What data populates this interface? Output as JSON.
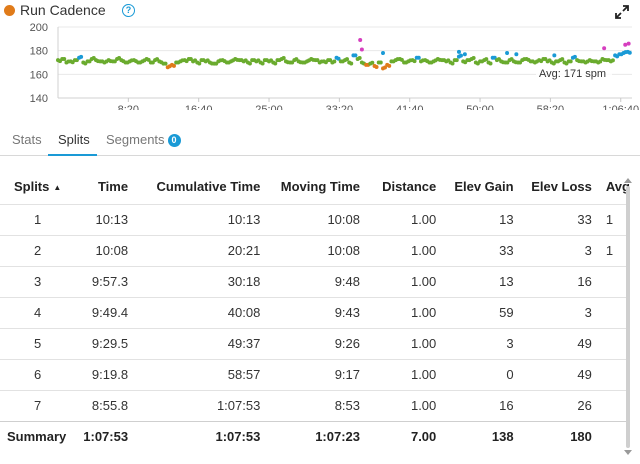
{
  "header": {
    "title": "Run Cadence",
    "metric_color": "#e07b1a",
    "help_icon": "help-circle-icon",
    "expand_icon": "expand-icon"
  },
  "chart_data": {
    "type": "scatter",
    "title": "Run Cadence",
    "y_ticks": [
      "200",
      "180",
      "160",
      "140"
    ],
    "ylim": [
      140,
      200
    ],
    "x_ticks": [
      "8:20",
      "16:40",
      "25:00",
      "33:20",
      "41:40",
      "50:00",
      "58:20",
      "1:06:40"
    ],
    "x_tick_minutes": [
      8.333,
      16.667,
      25,
      33.333,
      41.667,
      50,
      58.333,
      66.667
    ],
    "xlim_minutes": [
      0,
      68
    ],
    "avg_label": "Avg: 171 spm",
    "avg_value": 171,
    "series_colors": {
      "low": "#e07b1a",
      "mid": "#6aab2e",
      "high": "#1a9ad6",
      "top": "#d63fbf"
    },
    "series": [
      {
        "name": "",
        "x_minutes": [
          0,
          0.5,
          1,
          1.5,
          2,
          2.5,
          3,
          3.5,
          4,
          4.5,
          5,
          5.5,
          6,
          6.5,
          7,
          7.5,
          8,
          8.5,
          9,
          9.5,
          10,
          10.5,
          11,
          11.5,
          12,
          12.5,
          13,
          13.5,
          14,
          14.5,
          15,
          15.5,
          16,
          16.5,
          17,
          17.5,
          18,
          18.5,
          19,
          19.5,
          20,
          20.5,
          21,
          21.5,
          22,
          22.5,
          23,
          23.5,
          24,
          24.5,
          25,
          25.5,
          26,
          26.5,
          27,
          27.5,
          28,
          28.5,
          29,
          29.5,
          30,
          30.5,
          31,
          31.5,
          32,
          32.5,
          33,
          33.5,
          34,
          34.5,
          35,
          35.5,
          36,
          36.5,
          37,
          37.5,
          38,
          38.5,
          39,
          39.5,
          40,
          40.5,
          41,
          41.5,
          42,
          42.5,
          43,
          43.5,
          44,
          44.5,
          45,
          45.5,
          46,
          46.5,
          47,
          47.5,
          48,
          48.5,
          49,
          49.5,
          50,
          50.5,
          51,
          51.5,
          52,
          52.5,
          53,
          53.5,
          54,
          54.5,
          55,
          55.5,
          56,
          56.5,
          57,
          57.5,
          58,
          58.5,
          59,
          59.5,
          60,
          60.5,
          61,
          61.5,
          62,
          62.5,
          63,
          63.5,
          64,
          64.5,
          65,
          65.5,
          66,
          66.5,
          67,
          67.5
        ],
        "values": [
          172,
          173,
          170,
          171,
          172,
          174,
          170,
          171,
          173,
          172,
          171,
          170,
          172,
          171,
          173,
          172,
          170,
          171,
          172,
          170,
          171,
          173,
          170,
          172,
          171,
          169,
          166,
          168,
          170,
          171,
          172,
          173,
          171,
          170,
          172,
          171,
          170,
          169,
          171,
          172,
          170,
          171,
          173,
          172,
          171,
          170,
          172,
          171,
          170,
          172,
          171,
          170,
          172,
          173,
          171,
          170,
          172,
          171,
          170,
          171,
          173,
          172,
          170,
          171,
          172,
          170,
          174,
          171,
          172,
          170,
          176,
          173,
          170,
          168,
          169,
          167,
          170,
          165,
          168,
          171,
          172,
          173,
          170,
          171,
          172,
          174,
          171,
          172,
          170,
          171,
          173,
          172,
          171,
          170,
          172,
          175,
          171,
          172,
          173,
          170,
          171,
          172,
          170,
          174,
          172,
          171,
          170,
          172,
          171,
          170,
          172,
          173,
          171,
          170,
          172,
          173,
          171,
          170,
          171,
          172,
          170,
          171,
          174,
          172,
          171,
          170,
          172,
          171,
          170,
          173,
          172,
          171,
          176,
          177,
          178,
          179
        ]
      }
    ],
    "outliers": [
      {
        "x_minutes": 35.8,
        "value": 189
      },
      {
        "x_minutes": 36.0,
        "value": 181
      },
      {
        "x_minutes": 38.5,
        "value": 178
      },
      {
        "x_minutes": 47.5,
        "value": 179
      },
      {
        "x_minutes": 48.2,
        "value": 177
      },
      {
        "x_minutes": 53.2,
        "value": 178
      },
      {
        "x_minutes": 54.3,
        "value": 177
      },
      {
        "x_minutes": 58.8,
        "value": 176
      },
      {
        "x_minutes": 64.7,
        "value": 182
      },
      {
        "x_minutes": 67.2,
        "value": 185
      },
      {
        "x_minutes": 67.6,
        "value": 186
      }
    ]
  },
  "tabs": [
    {
      "label": "Stats",
      "active": false
    },
    {
      "label": "Splits",
      "active": true
    },
    {
      "label": "Segments",
      "active": false,
      "badge": "0"
    }
  ],
  "table": {
    "headers": [
      "Splits",
      "Time",
      "Cumulative Time",
      "Moving Time",
      "Distance",
      "Elev Gain",
      "Elev Loss",
      "Avg"
    ],
    "sort_indicator": "▲",
    "rows": [
      [
        "1",
        "10:13",
        "10:13",
        "10:08",
        "1.00",
        "13",
        "33",
        "1"
      ],
      [
        "2",
        "10:08",
        "20:21",
        "10:08",
        "1.00",
        "33",
        "3",
        "1"
      ],
      [
        "3",
        "9:57.3",
        "30:18",
        "9:48",
        "1.00",
        "13",
        "16",
        ""
      ],
      [
        "4",
        "9:49.4",
        "40:08",
        "9:43",
        "1.00",
        "59",
        "3",
        ""
      ],
      [
        "5",
        "9:29.5",
        "49:37",
        "9:26",
        "1.00",
        "3",
        "49",
        ""
      ],
      [
        "6",
        "9:19.8",
        "58:57",
        "9:17",
        "1.00",
        "0",
        "49",
        ""
      ],
      [
        "7",
        "8:55.8",
        "1:07:53",
        "8:53",
        "1.00",
        "16",
        "26",
        ""
      ]
    ],
    "summary": [
      "Summary",
      "1:07:53",
      "1:07:53",
      "1:07:23",
      "7.00",
      "138",
      "180",
      ""
    ]
  }
}
